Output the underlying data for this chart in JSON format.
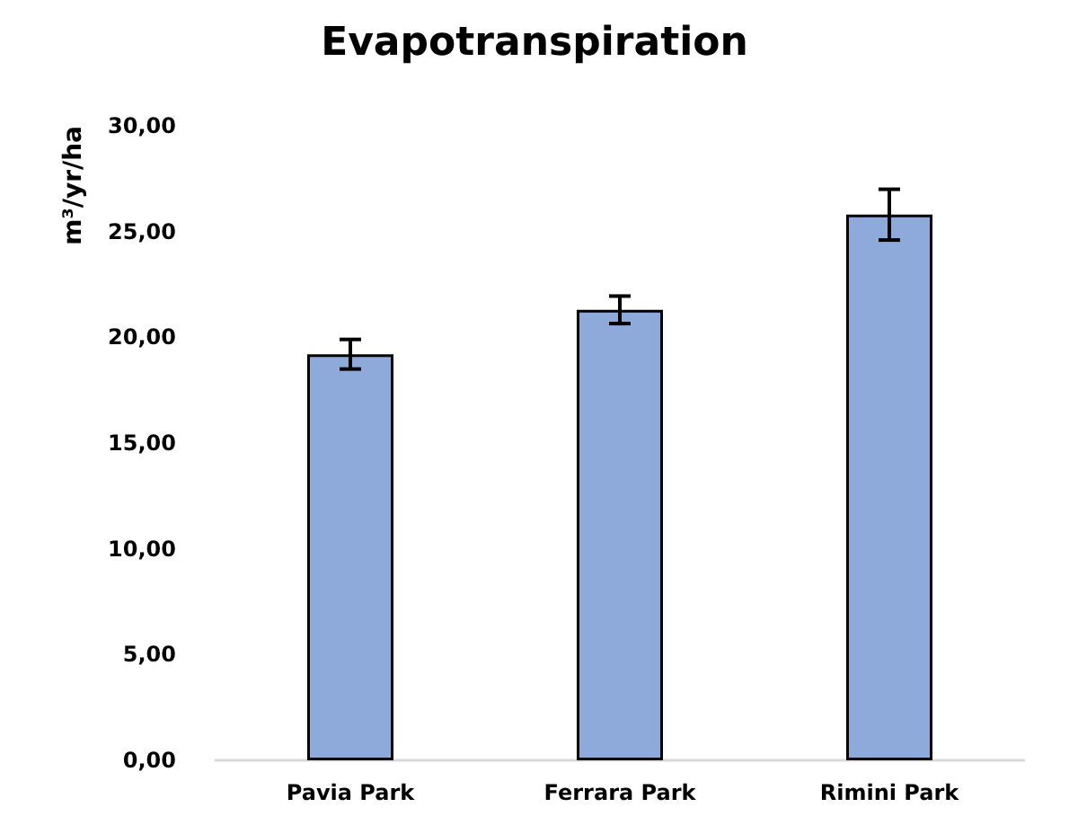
{
  "chart_data": {
    "type": "bar",
    "title": "Evapotranspiration",
    "ylabel": "m³/yr/ha",
    "categories": [
      "Pavia Park",
      "Ferrara Park",
      "Rimini Park"
    ],
    "values": [
      19.2,
      21.3,
      25.8
    ],
    "errors": [
      0.7,
      0.65,
      1.2
    ],
    "color": "#8eaadb",
    "ylim": [
      0,
      30
    ],
    "yticks": [
      {
        "value": 0,
        "label": "0,00"
      },
      {
        "value": 5,
        "label": "5,00"
      },
      {
        "value": 10,
        "label": "10,00"
      },
      {
        "value": 15,
        "label": "15,00"
      },
      {
        "value": 20,
        "label": "20,00"
      },
      {
        "value": 25,
        "label": "25,00"
      },
      {
        "value": 30,
        "label": "30,00"
      }
    ],
    "grid": false
  }
}
